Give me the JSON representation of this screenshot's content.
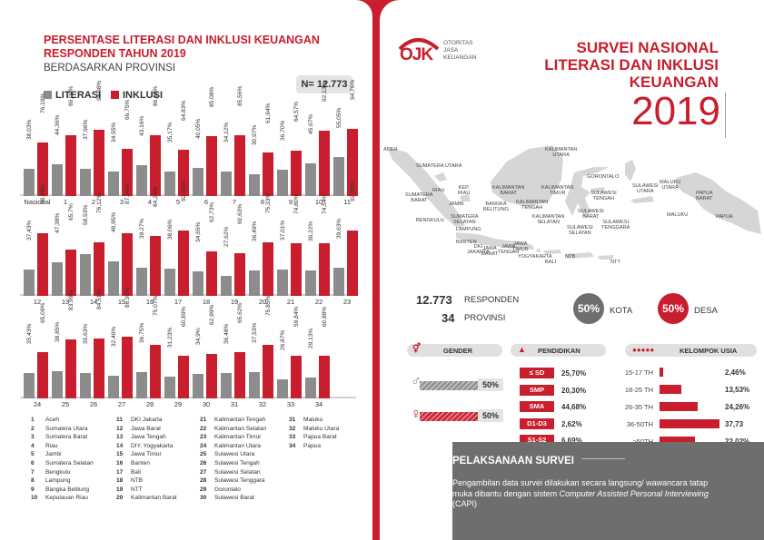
{
  "left": {
    "title_line1": "PERSENTASE LITERASI DAN INKLUSI KEUANGAN",
    "title_line2": "RESPONDEN TAHUN 2019",
    "subtitle": "BERDASARKAN PROVINSI",
    "n_label": "N= 12.773",
    "legend": {
      "literasi": "LITERASI",
      "inklusi": "INKLUSI"
    },
    "colors": {
      "literasi": "#8c8c8c",
      "inklusi": "#c81e2d"
    }
  },
  "chart_data": {
    "type": "bar",
    "title": "PERSENTASE LITERASI DAN INKLUSI KEUANGAN RESPONDEN TAHUN 2019",
    "ylim": [
      0,
      100
    ],
    "series": [
      {
        "name": "LITERASI"
      },
      {
        "name": "INKLUSI"
      }
    ],
    "rows": [
      {
        "groups": [
          {
            "label": "Nasional",
            "literasi": 38.03,
            "inklusi": 76.19,
            "literasi_text": "38,03%",
            "inklusi_text": "76,19%"
          },
          {
            "label": "1",
            "literasi": 44.36,
            "inklusi": 86.09,
            "literasi_text": "44,36%",
            "inklusi_text": "86,09%"
          },
          {
            "label": "2",
            "literasi": 37.96,
            "inklusi": 93.98,
            "literasi_text": "37,96%",
            "inklusi_text": "93,98%"
          },
          {
            "label": "3",
            "literasi": 34.55,
            "inklusi": 66.75,
            "literasi_text": "34,55%",
            "inklusi_text": "66,75%"
          },
          {
            "label": "4",
            "literasi": 43.16,
            "inklusi": 86.39,
            "literasi_text": "43,16%",
            "inklusi_text": "86,39%"
          },
          {
            "label": "5",
            "literasi": 35.17,
            "inklusi": 64.83,
            "literasi_text": "35,17%",
            "inklusi_text": "64,83%"
          },
          {
            "label": "6",
            "literasi": 40.05,
            "inklusi": 85.08,
            "literasi_text": "40,05%",
            "inklusi_text": "85,08%"
          },
          {
            "label": "7",
            "literasi": 34.12,
            "inklusi": 85.56,
            "literasi_text": "34,12%",
            "inklusi_text": "85,56%"
          },
          {
            "label": "8",
            "literasi": 30.97,
            "inklusi": 61.94,
            "literasi_text": "30,97%",
            "inklusi_text": "61,94%"
          },
          {
            "label": "9",
            "literasi": 36.7,
            "inklusi": 64.57,
            "literasi_text": "36,70%",
            "inklusi_text": "64,57%"
          },
          {
            "label": "10",
            "literasi": 45.67,
            "inklusi": 92.13,
            "literasi_text": "45,67%",
            "inklusi_text": "92,13%"
          },
          {
            "label": "11",
            "literasi": 55.05,
            "inklusi": 94.76,
            "literasi_text": "55,05%",
            "inklusi_text": "94,76%"
          }
        ]
      },
      {
        "groups": [
          {
            "label": "12",
            "literasi": 37.43,
            "inklusi": 88.48,
            "literasi_text": "37,43%",
            "inklusi_text": "88,48%"
          },
          {
            "label": "13",
            "literasi": 47.38,
            "inklusi": 65.7,
            "literasi_text": "47,38%",
            "inklusi_text": "65,7%"
          },
          {
            "label": "14",
            "literasi": 58.53,
            "inklusi": 76.12,
            "literasi_text": "58,53%",
            "inklusi_text": "76,12%"
          },
          {
            "label": "15",
            "literasi": 48.95,
            "inklusi": 87.96,
            "literasi_text": "48,95%",
            "inklusi_text": "87,96%"
          },
          {
            "label": "16",
            "literasi": 39.27,
            "inklusi": 84.29,
            "literasi_text": "39,27%",
            "inklusi_text": "84,29%"
          },
          {
            "label": "17",
            "literasi": 38.06,
            "inklusi": 92.91,
            "literasi_text": "38,06%",
            "inklusi_text": "92,91%"
          },
          {
            "label": "18",
            "literasi": 34.65,
            "inklusi": 62.73,
            "literasi_text": "34,65%",
            "inklusi_text": "62,73%"
          },
          {
            "label": "19",
            "literasi": 27.62,
            "inklusi": 60.63,
            "literasi_text": "27,62%",
            "inklusi_text": "60,63%"
          },
          {
            "label": "20",
            "literasi": 36.49,
            "inklusi": 75.33,
            "literasi_text": "36,49%",
            "inklusi_text": "75,33%"
          },
          {
            "label": "21",
            "literasi": 37.01,
            "inklusi": 74.8,
            "literasi_text": "37,01%",
            "inklusi_text": "74,80%"
          },
          {
            "label": "22",
            "literasi": 36.22,
            "inklusi": 74.54,
            "literasi_text": "36,22%",
            "inklusi_text": "74,54%"
          },
          {
            "label": "23",
            "literasi": 39.63,
            "inklusi": 92.39,
            "literasi_text": "39,63%",
            "inklusi_text": "92,39%"
          }
        ]
      },
      {
        "groups": [
          {
            "label": "24",
            "literasi": 35.43,
            "inklusi": 65.09,
            "literasi_text": "35,43%",
            "inklusi_text": "65,09%"
          },
          {
            "label": "25",
            "literasi": 38.85,
            "inklusi": 83.99,
            "literasi_text": "38,85%",
            "inklusi_text": "83,99%"
          },
          {
            "label": "26",
            "literasi": 35.63,
            "inklusi": 84.51,
            "literasi_text": "35,63%",
            "inklusi_text": "84,51%"
          },
          {
            "label": "27",
            "literasi": 32.46,
            "inklusi": 86.91,
            "literasi_text": "32,46%",
            "inklusi_text": "86,91%"
          },
          {
            "label": "28",
            "literasi": 36.75,
            "inklusi": 75.07,
            "literasi_text": "36,75%",
            "inklusi_text": "75,07%"
          },
          {
            "label": "29",
            "literasi": 31.23,
            "inklusi": 60.89,
            "literasi_text": "31,23%",
            "inklusi_text": "60,89%"
          },
          {
            "label": "30",
            "literasi": 34.9,
            "inklusi": 62.99,
            "literasi_text": "34,9%",
            "inklusi_text": "62,99%"
          },
          {
            "label": "31",
            "literasi": 36.48,
            "inklusi": 65.62,
            "literasi_text": "36,48%",
            "inklusi_text": "65,62%"
          },
          {
            "label": "32",
            "literasi": 37.53,
            "inklusi": 75.85,
            "literasi_text": "37,53%",
            "inklusi_text": "75,85%"
          },
          {
            "label": "33",
            "literasi": 26.87,
            "inklusi": 59.84,
            "literasi_text": "26,87%",
            "inklusi_text": "59,84%"
          },
          {
            "label": "34",
            "literasi": 29.13,
            "inklusi": 60.88,
            "literasi_text": "29,13%",
            "inklusi_text": "60,88%"
          }
        ]
      }
    ]
  },
  "provinces": [
    [
      "1",
      "Aceh"
    ],
    [
      "2",
      "Sumatera Utara"
    ],
    [
      "3",
      "Sumatera Barat"
    ],
    [
      "4",
      "Riau"
    ],
    [
      "5",
      "Jambi"
    ],
    [
      "6",
      "Sumatera Selatan"
    ],
    [
      "7",
      "Bengkulu"
    ],
    [
      "8",
      "Lampung"
    ],
    [
      "9",
      "Bangka Belitung"
    ],
    [
      "10",
      "Kepulauan Riau"
    ],
    [
      "11",
      "DKI Jakarta"
    ],
    [
      "12",
      "Jawa Barat"
    ],
    [
      "13",
      "Jawa Tengah"
    ],
    [
      "14",
      "DIY. Yogyakarta"
    ],
    [
      "15",
      "Jawa Timur"
    ],
    [
      "16",
      "Banten"
    ],
    [
      "17",
      "Bali"
    ],
    [
      "18",
      "NTB"
    ],
    [
      "19",
      "NTT"
    ],
    [
      "20",
      "Kalimantan Barat"
    ],
    [
      "21",
      "Kalimantan Tengah"
    ],
    [
      "22",
      "Kalimantan Selatan"
    ],
    [
      "23",
      "Kalimantan Timur"
    ],
    [
      "24",
      "Kalimantan Utara"
    ],
    [
      "25",
      "Sulawesi Utara"
    ],
    [
      "26",
      "Sulawesi Tengah"
    ],
    [
      "27",
      "Sulawesi Selatan"
    ],
    [
      "28",
      "Sulawesi Tenggara"
    ],
    [
      "29",
      "Gorontalo"
    ],
    [
      "30",
      "Sulawesi Barat"
    ],
    [
      "31",
      "Maluku"
    ],
    [
      "32",
      "Maluku Utara"
    ],
    [
      "33",
      "Papua Barat"
    ],
    [
      "34",
      "Papua"
    ]
  ],
  "right": {
    "logo_text": "OJK",
    "logo_lines": [
      "OTORITAS",
      "JASA",
      "KEUANGAN"
    ],
    "title_lines": [
      "SURVEI NASIONAL",
      "LITERASI DAN INKLUSI",
      "KEUANGAN"
    ],
    "year": "2019",
    "map_labels": [
      {
        "t": "ACEH"
      },
      {
        "t": "SUMATERA UTARA"
      },
      {
        "t": "SUMATERA\nBARAT"
      },
      {
        "t": "RIAU"
      },
      {
        "t": "KEP.\nRIAU"
      },
      {
        "t": "JAMBI"
      },
      {
        "t": "BANGKA\nBELITUNG"
      },
      {
        "t": "BENGKULU"
      },
      {
        "t": "SUMATERA\nSELATAN"
      },
      {
        "t": "LAMPUNG"
      },
      {
        "t": "BANTEN"
      },
      {
        "t": "DKI\nJAKARTA"
      },
      {
        "t": "JAWA\nBARAT"
      },
      {
        "t": "JAWA\nTENGAH"
      },
      {
        "t": "JAWA\nTIMUR"
      },
      {
        "t": "YOGYAKARTA"
      },
      {
        "t": "BALI"
      },
      {
        "t": "NTB"
      },
      {
        "t": "NTT"
      },
      {
        "t": "KALIMANTAN\nBARAT"
      },
      {
        "t": "KALIMANTAN\nTENGAH"
      },
      {
        "t": "KALIMANTAN\nSELATAN"
      },
      {
        "t": "KALIMANTAN\nTIMUR"
      },
      {
        "t": "KALIMANTAN\nUTARA"
      },
      {
        "t": "GORONTALO"
      },
      {
        "t": "SULAWESI\nTENGAH"
      },
      {
        "t": "SULAWESI\nBARAT"
      },
      {
        "t": "SULAWESI\nSELATAN"
      },
      {
        "t": "SULAWESI\nTENGGARA"
      },
      {
        "t": "SULAWESI\nUTARA"
      },
      {
        "t": "MALUKU\nUTARA"
      },
      {
        "t": "MALUKU"
      },
      {
        "t": "PAPUA\nBARAT"
      },
      {
        "t": "PAPUA"
      }
    ],
    "respondents_num": "12.773",
    "respondents_label": "RESPONDEN",
    "provinces_num": "34",
    "provinces_label": "PROVINSI",
    "kota_pct": "50%",
    "kota_label": "KOTA",
    "desa_pct": "50%",
    "desa_label": "DESA",
    "gender_title": "GENDER",
    "gender_male": "50%",
    "gender_female": "50%",
    "edu_title": "PENDIDIKAN",
    "edu": [
      [
        "≤ SD",
        "25,70%"
      ],
      [
        "SMP",
        "20,30%"
      ],
      [
        "SMA",
        "44,68%"
      ],
      [
        "D1-D3",
        "2,62%"
      ],
      [
        "S1-S2",
        "6,69%"
      ]
    ],
    "age_title": "KELOMPOK USIA",
    "age": [
      [
        "15-17 TH",
        "2,46%",
        2.46
      ],
      [
        "18-25 TH",
        "13,53%",
        13.53
      ],
      [
        "26-35 TH",
        "24,26%",
        24.26
      ],
      [
        "36-50TH",
        "37,73",
        37.73
      ],
      [
        ">50TH",
        "22,02%",
        22.02
      ]
    ],
    "pelaksanaan_title": "PELAKSANAAN SURVEI",
    "pelaksanaan_text1": "Pengambilan data survei dilakukan secara langsung/ wawancara tatap muka dibantu dengan sistem ",
    "pelaksanaan_italic": "Computer Assisted Personal Interviewing",
    "pelaksanaan_text2": " (CAPI)"
  }
}
